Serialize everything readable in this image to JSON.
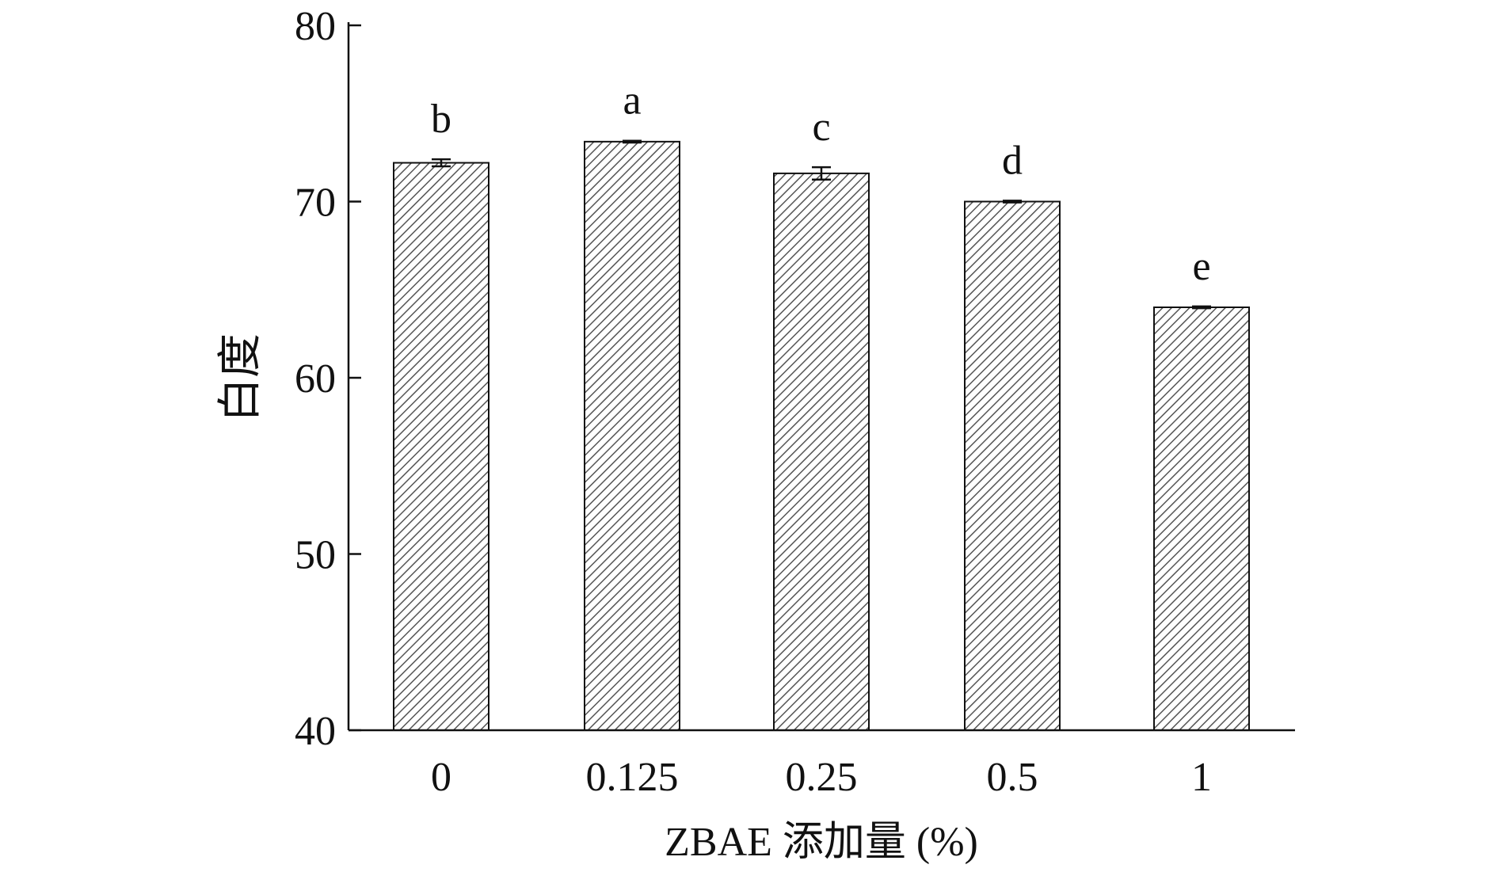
{
  "chart_data": {
    "type": "bar",
    "title": "",
    "xlabel": "ZBAE 添加量 (%)",
    "ylabel": "白度",
    "categories": [
      "0",
      "0.125",
      "0.25",
      "0.5",
      "1"
    ],
    "values": [
      72.2,
      73.4,
      71.6,
      70.0,
      64.0
    ],
    "errors": [
      0.2,
      0.05,
      0.35,
      0.05,
      0.05
    ],
    "significance_letters": [
      "b",
      "a",
      "c",
      "d",
      "e"
    ],
    "ylim": [
      40,
      80
    ],
    "yticks": [
      40,
      50,
      60,
      70,
      80
    ],
    "grid": false,
    "legend": "none",
    "bar_fill": "hatched",
    "colors": {
      "bar_stroke": "#111111",
      "hatch_line": "#555555",
      "axis": "#111111"
    }
  }
}
